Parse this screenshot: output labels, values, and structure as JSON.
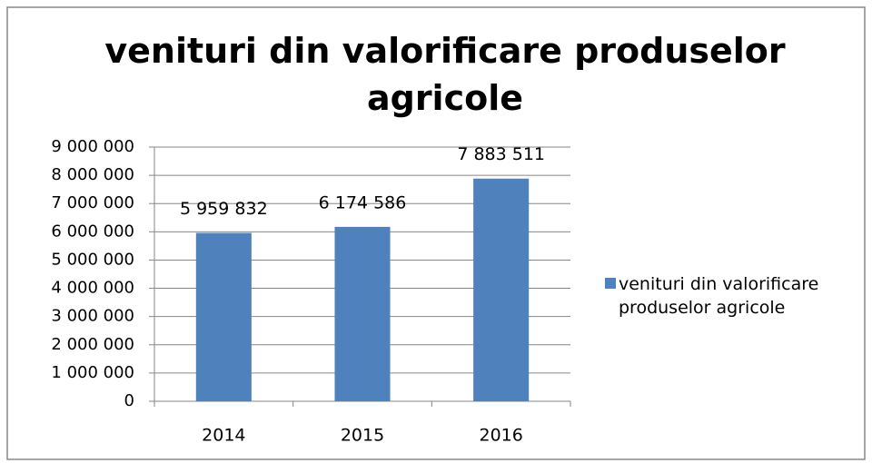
{
  "chart_data": {
    "type": "bar",
    "title": "venituri din valorificare produselor agricole",
    "categories": [
      "2014",
      "2015",
      "2016"
    ],
    "series": [
      {
        "name": "venituri din valorificare produselor agricole",
        "color": "#4f81bd",
        "values": [
          5959832,
          6174586,
          7883511
        ],
        "value_labels": [
          "5 959 832",
          "6 174 586",
          "7 883 511"
        ]
      }
    ],
    "ylim": [
      0,
      9000000
    ],
    "yticks": [
      0,
      {
        "value": 1000000,
        "label": "1 000 000"
      },
      {
        "value": 2000000,
        "label": "2 000 000"
      },
      {
        "value": 3000000,
        "label": "3 000 000"
      },
      {
        "value": 4000000,
        "label": "4 000 000"
      },
      {
        "value": 5000000,
        "label": "5 000 000"
      },
      {
        "value": 6000000,
        "label": "6 000 000"
      },
      {
        "value": 7000000,
        "label": "7 000 000"
      },
      {
        "value": 8000000,
        "label": "8 000 000"
      },
      {
        "value": 9000000,
        "label": "9 000 000"
      }
    ],
    "grid": true,
    "legend": "right"
  }
}
